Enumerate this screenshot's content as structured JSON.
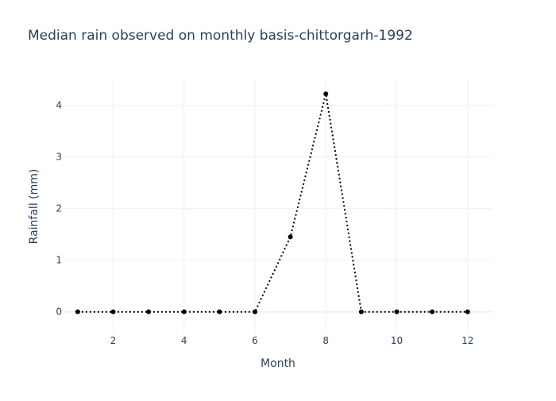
{
  "chart_data": {
    "type": "line",
    "title": "Median rain observed on monthly basis-chittorgarh-1992",
    "xlabel": "Month",
    "ylabel": "Rainfall (mm)",
    "x": [
      1,
      2,
      3,
      4,
      5,
      6,
      7,
      8,
      9,
      10,
      11,
      12
    ],
    "series": [
      {
        "values": [
          0,
          0,
          0,
          0,
          0,
          0,
          1.45,
          4.22,
          0,
          0,
          0,
          0
        ],
        "color": "#000000",
        "line_style": "dotted",
        "markers": true
      }
    ],
    "xlim": [
      0.6,
      12.7
    ],
    "ylim": [
      -0.42,
      4.5
    ],
    "xticks": [
      2,
      4,
      6,
      8,
      10,
      12
    ],
    "yticks": [
      0,
      1,
      2,
      3,
      4
    ],
    "grid": true,
    "legend": "none"
  }
}
